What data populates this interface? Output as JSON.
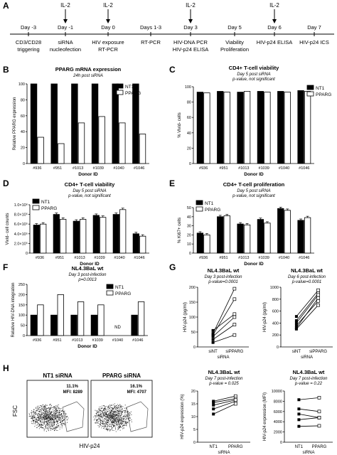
{
  "timeline": {
    "days": [
      "Day -3",
      "Day -1",
      "Day 0",
      "Days 1-3",
      "Day 3",
      "Day 5",
      "Day 6",
      "Day 7"
    ],
    "il2_label": "IL-2",
    "il2_days": [
      1,
      2,
      4,
      6
    ],
    "events": [
      [
        "CD3/CD28",
        "triggering"
      ],
      [
        "siRNA",
        "nucleofection"
      ],
      [
        "HIV exposure",
        "RT-PCR"
      ],
      [
        "RT-PCR"
      ],
      [
        "HIV-DNA PCR",
        "HIV-p24 ELISA"
      ],
      [
        "Viability",
        "Proliferation"
      ],
      [
        "HIV-p24 ELISA"
      ],
      [
        "HIV-p24 ICS"
      ]
    ]
  },
  "panels": {
    "A": "A",
    "B": "B",
    "C": "C",
    "D": "D",
    "E": "E",
    "F": "F",
    "G": "G",
    "H": "H"
  },
  "legend": {
    "nt1": "NT1",
    "pparg": "PPARG"
  },
  "donors": [
    "#936",
    "#951",
    "#1013",
    "#1039",
    "#1040",
    "#1046"
  ],
  "chart_data": [
    {
      "id": "B",
      "type": "bar",
      "title": "PPARG mRNA expression",
      "subtitle": "24h post siRNA",
      "xlabel": "Donor ID",
      "ylabel": "Relative PPARG expression",
      "ylim": [
        0,
        100
      ],
      "yticks": [
        "0",
        "20",
        "40",
        "60",
        "80",
        "100"
      ],
      "series": [
        {
          "name": "NT1",
          "values": [
            100,
            100,
            100,
            100,
            100,
            100
          ]
        },
        {
          "name": "PPARG",
          "values": [
            33,
            25,
            51,
            59,
            51,
            37
          ]
        }
      ]
    },
    {
      "id": "C",
      "type": "bar",
      "title": "CD4+ T-cell viability",
      "subtitle": "Day 5 post siRNA",
      "note": "p-value, not significant",
      "xlabel": "Donor ID",
      "ylabel": "% Vivid- cells",
      "ylim": [
        0,
        100
      ],
      "yticks": [
        "0",
        "20",
        "40",
        "60",
        "80",
        "100"
      ],
      "series": [
        {
          "name": "NT1",
          "values": [
            93,
            94,
            93,
            94,
            94,
            95
          ]
        },
        {
          "name": "PPARG",
          "values": [
            92,
            93,
            94,
            93,
            93,
            94
          ]
        }
      ]
    },
    {
      "id": "D",
      "type": "bar",
      "title": "CD4+ T-cell viability",
      "subtitle": "Day 5 post siRNA",
      "note": "p-value, not significant",
      "xlabel": "Donor ID",
      "ylabel": "Vivid- cell counts",
      "ylim": [
        0,
        1000000
      ],
      "yticks": [
        "0",
        "2.0×10⁵",
        "4.0×10⁵",
        "6.0×10⁵",
        "8.0×10⁵",
        "1.0×10⁶"
      ],
      "series": [
        {
          "name": "NT1",
          "values": [
            580000,
            800000,
            660000,
            780000,
            800000,
            400000
          ]
        },
        {
          "name": "PPARG",
          "values": [
            600000,
            700000,
            700000,
            740000,
            900000,
            350000
          ]
        }
      ]
    },
    {
      "id": "E",
      "type": "bar",
      "title": "CD4+ T-cell proliferation",
      "subtitle": "Day 5 post siRNA",
      "note": "p-value, not significant",
      "xlabel": "Donor ID",
      "ylabel": "% Ki67+ cells",
      "ylim": [
        0,
        50
      ],
      "yticks": [
        "0",
        "10",
        "20",
        "30",
        "40",
        "50"
      ],
      "series": [
        {
          "name": "NT1",
          "values": [
            22,
            40,
            32,
            37,
            49,
            36
          ]
        },
        {
          "name": "PPARG",
          "values": [
            20,
            41,
            31,
            33,
            47,
            39
          ]
        }
      ]
    },
    {
      "id": "F",
      "type": "bar",
      "title": "NL4.3BaL wt",
      "subtitle": "Day 3 post-infection",
      "note": "p=0.0013",
      "xlabel": "Donor ID",
      "ylabel": "Relative HIV-DNA integration",
      "ylim": [
        0,
        250
      ],
      "yticks": [
        "0",
        "50",
        "100",
        "150",
        "200",
        "250"
      ],
      "nd_label": "ND",
      "series": [
        {
          "name": "NT1",
          "values": [
            100,
            100,
            100,
            100,
            null,
            100
          ]
        },
        {
          "name": "PPARG",
          "values": [
            150,
            200,
            165,
            150,
            null,
            165
          ]
        }
      ]
    },
    {
      "id": "G1",
      "type": "line",
      "title": "NL4.3BaL wt",
      "subtitle": "Day 3 post-infection",
      "note": "p-value=0.0001",
      "xlabel": "siRNA",
      "ylabel": "HIV-p24 (pg/ml)",
      "categories": [
        "siNT",
        "siPPARG"
      ],
      "ylim": [
        0,
        200
      ],
      "yticks": [
        "0",
        "50",
        "100",
        "150",
        "200"
      ],
      "pairs": [
        [
          45,
          195
        ],
        [
          40,
          160
        ],
        [
          55,
          110
        ],
        [
          35,
          100
        ],
        [
          25,
          75
        ],
        [
          15,
          40
        ]
      ]
    },
    {
      "id": "G2",
      "type": "line",
      "title": "NL4.3BaL wt",
      "subtitle": "Day 6 post-infection",
      "note": "p-value=0.0001",
      "xlabel": "siRNA",
      "ylabel": "HIV-p24 (pg/ml)",
      "categories": [
        "siNT",
        "siPPARG"
      ],
      "ylim": [
        0,
        1000
      ],
      "yticks": [
        "0",
        "200",
        "400",
        "600",
        "800",
        "1000"
      ],
      "pairs": [
        [
          510,
          950
        ],
        [
          440,
          900
        ],
        [
          400,
          870
        ],
        [
          320,
          820
        ],
        [
          360,
          770
        ],
        [
          300,
          700
        ]
      ]
    },
    {
      "id": "H1",
      "type": "line",
      "title": "NL4.3BaL wt",
      "subtitle": "Day 7 post-infection",
      "note": "p-value = 0.025",
      "xlabel": "siRNA",
      "ylabel": "HIV-p24 expression (%)",
      "categories": [
        "NT1",
        "PPARG"
      ],
      "ylim": [
        0,
        20
      ],
      "yticks": [
        "0",
        "5",
        "10",
        "15",
        "20"
      ],
      "pairs": [
        [
          16,
          18
        ],
        [
          15.5,
          17
        ],
        [
          13,
          16
        ],
        [
          11,
          15
        ],
        [
          14.5,
          16.5
        ]
      ]
    },
    {
      "id": "H2",
      "type": "line",
      "title": "NL4.3BaL wt",
      "subtitle": "Day 7 post-infection",
      "note": "p-value = 0.22",
      "xlabel": "siRNA",
      "ylabel": "HIV-p24 expression (MFI)",
      "categories": [
        "NT1",
        "PPARG"
      ],
      "ylim": [
        0,
        10000
      ],
      "yticks": [
        "0",
        "2000",
        "4000",
        "6000",
        "8000",
        "10000"
      ],
      "pairs": [
        [
          8300,
          8700
        ],
        [
          6500,
          6000
        ],
        [
          5500,
          4800
        ],
        [
          4400,
          4800
        ],
        [
          3100,
          3200
        ]
      ]
    }
  ],
  "flow": {
    "ylabel": "FSC",
    "xlabel": "HIV-p24",
    "plots": [
      {
        "title": "NT1 siRNA",
        "pct": "11.1%",
        "mfi": "MFI: 8289"
      },
      {
        "title": "PPARG siRNA",
        "pct": "16.1%",
        "mfi": "MFI: 4707"
      }
    ]
  }
}
